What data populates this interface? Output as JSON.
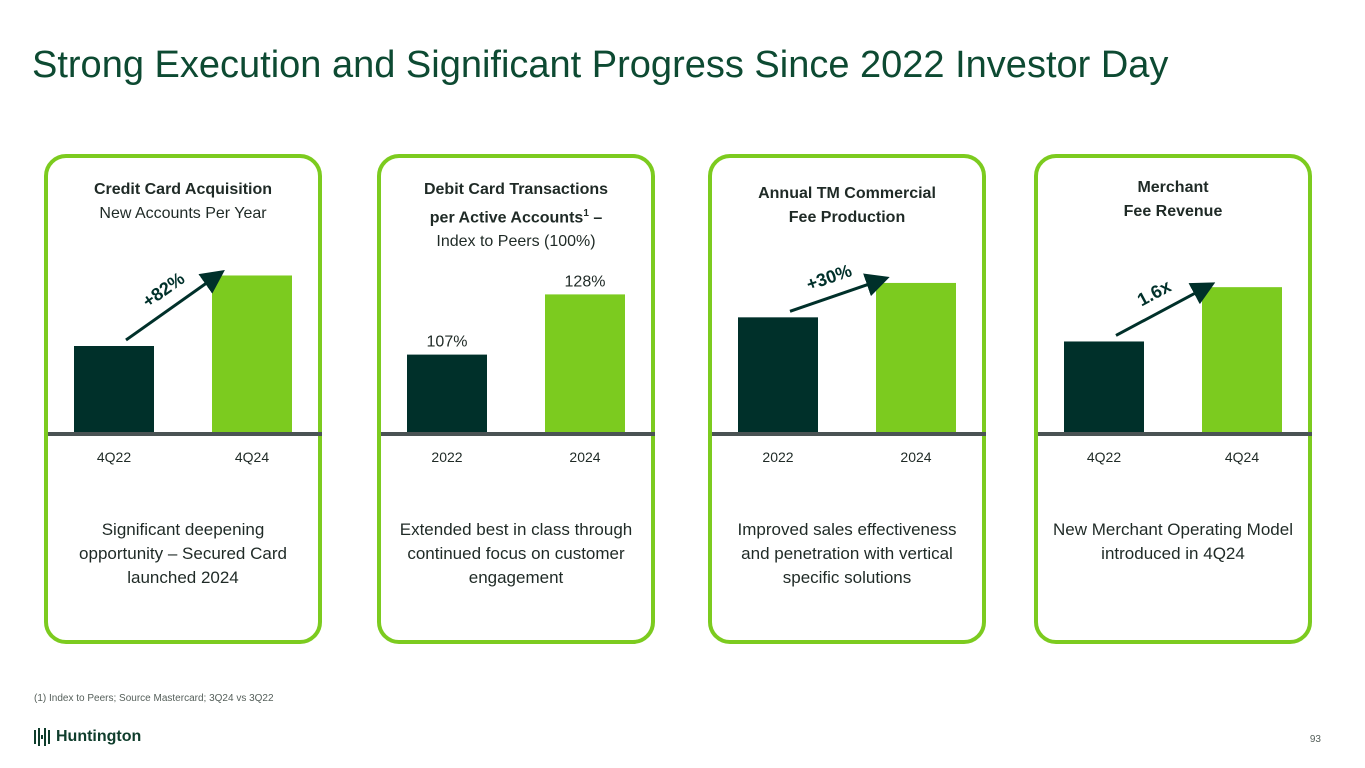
{
  "title": "Strong Execution and Significant Progress Since 2022 Investor Day",
  "colors": {
    "dark": "#00302a",
    "accent": "#7ccb1f",
    "baseline": "#4a5354"
  },
  "cards": [
    {
      "heading_bold": "Credit Card Acquisition",
      "heading_regular": "New Accounts Per Year",
      "footer": "Significant deepening opportunity – Secured Card launched 2024"
    },
    {
      "heading_bold_line1": "Debit Card Transactions",
      "heading_bold_line2": "per Active Accounts",
      "heading_sup": "1",
      "heading_bold_line2_suffix": " –",
      "heading_regular": "Index to Peers (100%)",
      "footer": "Extended best in class through continued focus on customer engagement"
    },
    {
      "heading_bold_line1": "Annual TM Commercial",
      "heading_bold_line2": "Fee Production",
      "footer": "Improved sales effectiveness and penetration with vertical specific solutions"
    },
    {
      "heading_bold_line1": "Merchant",
      "heading_bold_line2": "Fee Revenue",
      "footer": "New Merchant Operating Model introduced in 4Q24"
    }
  ],
  "chart_data": [
    {
      "type": "bar",
      "title": "Credit Card Acquisition — New Accounts Per Year",
      "categories": [
        "4Q22",
        "4Q24"
      ],
      "values": [
        1.0,
        1.82
      ],
      "annotation": "+82%",
      "ylim": [
        0,
        2.0
      ]
    },
    {
      "type": "bar",
      "title": "Debit Card Transactions per Active Accounts – Index to Peers (100%)",
      "categories": [
        "2022",
        "2024"
      ],
      "values": [
        107,
        128
      ],
      "data_labels": [
        "107%",
        "128%"
      ],
      "ylim": [
        80,
        140
      ]
    },
    {
      "type": "bar",
      "title": "Annual TM Commercial Fee Production",
      "categories": [
        "2022",
        "2024"
      ],
      "values": [
        1.0,
        1.3
      ],
      "annotation": "+30%",
      "ylim": [
        0,
        1.5
      ]
    },
    {
      "type": "bar",
      "title": "Merchant Fee Revenue",
      "categories": [
        "4Q22",
        "4Q24"
      ],
      "values": [
        1.0,
        1.6
      ],
      "annotation": "1.6x",
      "ylim": [
        0,
        1.9
      ]
    }
  ],
  "footnote": "(1) Index to Peers; Source Mastercard; 3Q24 vs 3Q22",
  "logo_text": "Huntington",
  "page_number": "93"
}
